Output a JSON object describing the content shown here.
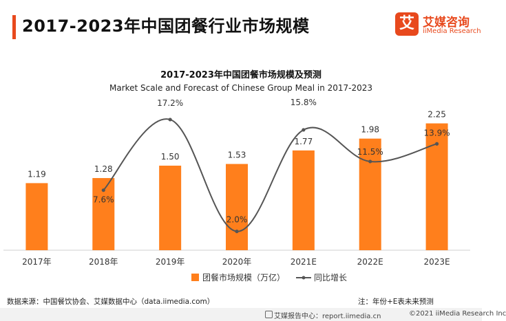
{
  "header": {
    "title": "2017-2023年中国团餐行业市场规模",
    "accent_color": "#e8491d"
  },
  "logo": {
    "mark": "艾",
    "name_cn": "艾媒咨询",
    "name_en": "iiMedia Research"
  },
  "chart_data": {
    "type": "bar",
    "title": "2017-2023年中国团餐市场规模及预测",
    "subtitle": "Market Scale and Forecast of Chinese Group Meal in 2017-2023",
    "categories": [
      "2017年",
      "2018年",
      "2019年",
      "2020年",
      "2021E",
      "2022E",
      "2023E"
    ],
    "series": [
      {
        "name": "团餐市场规模（万亿）",
        "type": "bar",
        "color": "#ff7f1c",
        "values": [
          1.19,
          1.28,
          1.5,
          1.53,
          1.77,
          1.98,
          2.25
        ],
        "labels": [
          "1.19",
          "1.28",
          "1.50",
          "1.53",
          "1.77",
          "1.98",
          "2.25"
        ]
      },
      {
        "name": "同比增长",
        "type": "line",
        "color": "#555555",
        "values": [
          null,
          7.6,
          17.2,
          2.0,
          15.8,
          11.5,
          13.9
        ],
        "labels": [
          "",
          "7.6%",
          "17.2%",
          "2.0%",
          "15.8%",
          "11.5%",
          "13.9%"
        ]
      }
    ],
    "grid": false,
    "legend_position": "bottom"
  },
  "footer": {
    "source": "数据来源：中国餐饮协会、艾媒数据中心（data.iimedia.com）",
    "note": "注：年份+E表未来预测",
    "site": "艾媒报告中心：report.iimedia.cn",
    "copyright": "©2021  iiMedia Research  Inc"
  }
}
